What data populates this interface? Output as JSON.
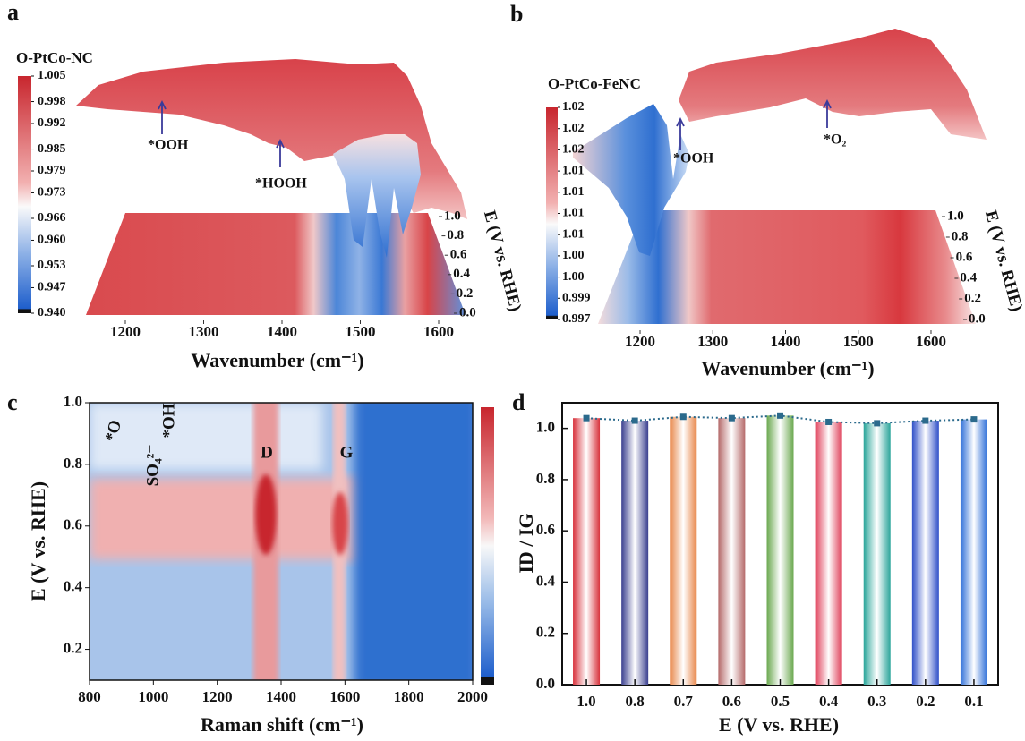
{
  "chart_data": [
    {
      "type": "surface3d",
      "panel_label": "a",
      "title": "O-PtCo-NC",
      "clim": [
        0.94,
        1.005
      ],
      "colorbar_ticks": [
        1.005,
        0.998,
        0.992,
        0.985,
        0.979,
        0.973,
        0.966,
        {
          "value": 0.96,
          "label": "0.960"
        },
        0.953,
        0.947,
        {
          "value": 0.94,
          "label": "0.940"
        }
      ],
      "xlim": [
        1150,
        1650
      ],
      "xticks": [
        1200,
        1300,
        1400,
        1500,
        1600
      ],
      "ylim": [
        0,
        1
      ],
      "yticks": [
        {
          "value": 0,
          "label": "0.0"
        },
        0.2,
        0.4,
        0.6,
        0.8,
        {
          "value": 1,
          "label": "1.0"
        }
      ],
      "xlabel": "Wavenumber (cm⁻¹)",
      "ylabel": "E (V vs. RHE)",
      "annotations": [
        {
          "text": "*OOH"
        },
        {
          "text": "*HOOH"
        }
      ]
    },
    {
      "type": "surface3d",
      "panel_label": "b",
      "title": "O-PtCo-FeNC",
      "clim": [
        0.997,
        1.021
      ],
      "colorbar_ticks": [
        {
          "value": 1.021,
          "label": "1.02"
        },
        {
          "value": 1.0186,
          "label": "1.02"
        },
        {
          "value": 1.0162,
          "label": "1.02"
        },
        {
          "value": 1.0138,
          "label": "1.01"
        },
        {
          "value": 1.0114,
          "label": "1.01"
        },
        {
          "value": 1.009,
          "label": "1.01"
        },
        {
          "value": 1.0066,
          "label": "1.01"
        },
        {
          "value": 1.0042,
          "label": "1.00"
        },
        {
          "value": 1.0018,
          "label": "1.00"
        },
        {
          "value": 0.9994,
          "label": "0.999"
        },
        0.997
      ],
      "xlim": [
        1150,
        1650
      ],
      "xticks": [
        1200,
        1300,
        1400,
        1500,
        1600
      ],
      "ylim": [
        0,
        1
      ],
      "yticks": [
        {
          "value": 0,
          "label": "0.0"
        },
        0.2,
        0.4,
        0.6,
        0.8,
        {
          "value": 1,
          "label": "1.0"
        }
      ],
      "xlabel": "Wavenumber (cm⁻¹)",
      "ylabel": "E (V vs. RHE)",
      "annotations": [
        {
          "text": "*OOH"
        },
        {
          "text": "*O₂"
        }
      ]
    },
    {
      "type": "heatmap",
      "panel_label": "c",
      "xlim": [
        800,
        2000
      ],
      "xticks": [
        800,
        1000,
        1200,
        1400,
        1600,
        1800,
        2000
      ],
      "ylim": [
        0.1,
        1.0
      ],
      "yticks": [
        0.2,
        0.4,
        0.6,
        0.8,
        {
          "value": 1,
          "label": "1.0"
        }
      ],
      "xlabel": "Raman shift (cm⁻¹)",
      "ylabel": "E (V vs. RHE)",
      "annotations": [
        {
          "text": "*O",
          "color": "#f0a030"
        },
        {
          "text": "SO₄²⁻",
          "color": "#c8781e"
        },
        {
          "text": "*OH",
          "color": "#2a9a78"
        },
        {
          "text": "D",
          "color": "#d02828"
        },
        {
          "text": "G",
          "color": "#2c5a88"
        }
      ]
    },
    {
      "type": "bar",
      "panel_label": "d",
      "categories": [
        "1.0",
        "0.8",
        "0.7",
        "0.6",
        "0.5",
        "0.4",
        "0.3",
        "0.2",
        "0.1"
      ],
      "values": [
        1.04,
        1.03,
        1.045,
        1.04,
        1.05,
        1.025,
        1.02,
        1.03,
        1.035
      ],
      "colors": [
        "#d8323c",
        "#3a3f8f",
        "#e8874a",
        "#b56a6a",
        "#6aa84f",
        "#e0405a",
        "#2aa59a",
        "#3050c8",
        "#2e6fd8"
      ],
      "line_color": "#2b6a8c",
      "ylim": [
        0,
        1.1
      ],
      "yticks": [
        {
          "value": 0,
          "label": "0.0"
        },
        0.2,
        0.4,
        0.6,
        0.8,
        {
          "value": 1,
          "label": "1.0"
        }
      ],
      "xlabel": "E (V vs. RHE)",
      "ylabel": "ID / IG"
    }
  ]
}
